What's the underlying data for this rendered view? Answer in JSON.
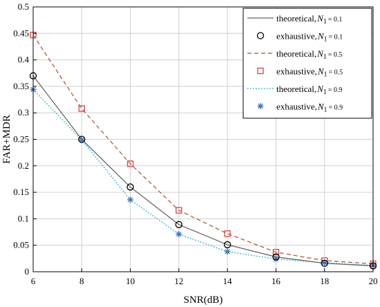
{
  "chart_data": {
    "type": "line",
    "title": "",
    "xlabel": "SNR(dB)",
    "ylabel": "FAR+MDR",
    "xlim": [
      6,
      20
    ],
    "ylim": [
      0,
      0.5
    ],
    "xticks": [
      "6",
      "8",
      "10",
      "12",
      "14",
      "16",
      "18",
      "20"
    ],
    "yticks": [
      "0",
      "0.05",
      "0.1",
      "0.15",
      "0.2",
      "0.25",
      "0.3",
      "0.35",
      "0.4",
      "0.45",
      "0.5"
    ],
    "grid": true,
    "legend_position": "top-right",
    "x": [
      6,
      8,
      10,
      12,
      14,
      16,
      18,
      20
    ],
    "series": [
      {
        "name": "theoretical,",
        "param": "N",
        "param_sub": "1",
        "param_value": "= 0.1",
        "style": "solid-line",
        "color": "#666666",
        "values": [
          0.37,
          0.25,
          0.16,
          0.089,
          0.051,
          0.028,
          0.016,
          0.011
        ]
      },
      {
        "name": "exhaustive,",
        "param": "N",
        "param_sub": "1",
        "param_value": "= 0.1",
        "style": "circle-marker",
        "color": "#000000",
        "values": [
          0.37,
          0.25,
          0.16,
          0.089,
          0.051,
          0.028,
          0.016,
          0.011
        ]
      },
      {
        "name": "theoretical,",
        "param": "N",
        "param_sub": "1",
        "param_value": "= 0.5",
        "style": "dashed-line",
        "color": "#a0522d",
        "values": [
          0.447,
          0.308,
          0.204,
          0.116,
          0.072,
          0.037,
          0.021,
          0.015
        ]
      },
      {
        "name": "exhaustive,",
        "param": "N",
        "param_sub": "1",
        "param_value": "= 0.5",
        "style": "square-marker",
        "color": "#e04040",
        "values": [
          0.447,
          0.308,
          0.204,
          0.116,
          0.072,
          0.037,
          0.021,
          0.015
        ]
      },
      {
        "name": "theoretical,",
        "param": "N",
        "param_sub": "1",
        "param_value": "= 0.9",
        "style": "dotted-line",
        "color": "#1ab0d6",
        "values": [
          0.344,
          0.249,
          0.136,
          0.071,
          0.038,
          0.024,
          0.017,
          0.012
        ]
      },
      {
        "name": "exhaustive,",
        "param": "N",
        "param_sub": "1",
        "param_value": "= 0.9",
        "style": "star-marker",
        "color": "#3a73b8",
        "values": [
          0.344,
          0.249,
          0.136,
          0.071,
          0.038,
          0.024,
          0.017,
          0.012
        ]
      }
    ]
  }
}
